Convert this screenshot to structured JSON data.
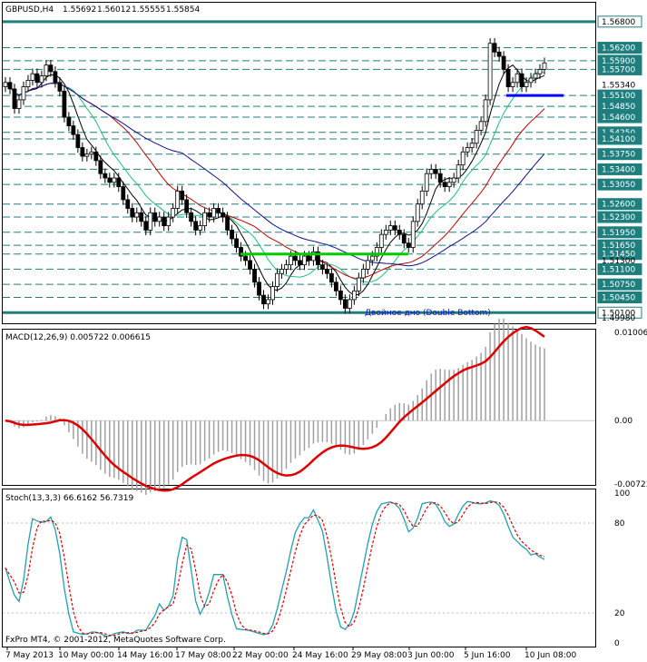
{
  "chart_data": [
    {
      "type": "candlestick",
      "panel": "price",
      "title": "GBPUSD,H4",
      "ohlc_header": [
        "1.55692",
        "1.56012",
        "1.55555",
        "1.55854"
      ],
      "ylim": [
        1.4998,
        1.5688
      ],
      "dashed_levels": [
        1.562,
        1.559,
        1.557,
        1.551,
        1.5485,
        1.546,
        1.5425,
        1.541,
        1.5375,
        1.534,
        1.5305,
        1.526,
        1.523,
        1.5195,
        1.5165,
        1.5145,
        1.511,
        1.5075,
        1.5045
      ],
      "level_labels": [
        "1.56800",
        "1.56200",
        "1.55900",
        "1.55700",
        "1.55100",
        "1.54850",
        "1.54600",
        "1.54250",
        "1.54100",
        "1.53750",
        "1.53400",
        "1.53050",
        "1.52600",
        "1.52300",
        "1.51950",
        "1.51650",
        "1.51450",
        "1.51100",
        "1.50750",
        "1.50450",
        "1.50100"
      ],
      "axis_labels": [
        "1.55340",
        "1.51300",
        "1.49980"
      ],
      "bold_levels": [
        1.568,
        1.501
      ],
      "double_bottom_neckline": 1.5145,
      "top_box_level": 1.551,
      "annotation": "Двойное дно (Double Bottom)",
      "closes": [
        1.554,
        1.5525,
        1.548,
        1.55,
        1.553,
        1.5545,
        1.556,
        1.554,
        1.5555,
        1.558,
        1.5565,
        1.554,
        1.552,
        1.546,
        1.544,
        1.542,
        1.539,
        1.537,
        1.5375,
        1.538,
        1.536,
        1.533,
        1.532,
        1.531,
        1.532,
        1.53,
        1.527,
        1.525,
        1.523,
        1.524,
        1.522,
        1.52,
        1.524,
        1.522,
        1.523,
        1.521,
        1.523,
        1.525,
        1.529,
        1.527,
        1.524,
        1.522,
        1.52,
        1.521,
        1.524,
        1.523,
        1.525,
        1.524,
        1.523,
        1.52,
        1.518,
        1.516,
        1.514,
        1.513,
        1.511,
        1.508,
        1.505,
        1.503,
        1.504,
        1.507,
        1.51,
        1.511,
        1.512,
        1.514,
        1.513,
        1.512,
        1.514,
        1.513,
        1.515,
        1.512,
        1.511,
        1.51,
        1.508,
        1.506,
        1.504,
        1.502,
        1.504,
        1.506,
        1.509,
        1.511,
        1.513,
        1.514,
        1.516,
        1.519,
        1.52,
        1.521,
        1.52,
        1.519,
        1.517,
        1.516,
        1.522,
        1.526,
        1.529,
        1.533,
        1.534,
        1.533,
        1.531,
        1.53,
        1.531,
        1.532,
        1.535,
        1.538,
        1.539,
        1.54,
        1.543,
        1.545,
        1.55,
        1.563,
        1.561,
        1.56,
        1.557,
        1.553,
        1.554,
        1.556,
        1.553,
        1.554,
        1.555,
        1.556,
        1.557,
        1.5585
      ],
      "series": [
        {
          "name": "MA-fast",
          "color": "#000000"
        },
        {
          "name": "MA-mid",
          "color": "#20c080"
        },
        {
          "name": "MA-slow",
          "color": "#c00000"
        },
        {
          "name": "MA-long",
          "color": "#10108a"
        }
      ],
      "colors": {
        "double_bottom": "#00cc00",
        "top_box": "#0000ff",
        "bold_level": "#1f7f7f",
        "dashed": "#1f7f7f"
      }
    },
    {
      "type": "bar+line",
      "panel": "macd",
      "title": "MACD(12,26,9) 0.005722 0.006615",
      "ylim": [
        -0.00723,
        0.010066
      ],
      "tick_labels": [
        "0.010066",
        "0.00",
        "-0.00723"
      ],
      "histogram_color": "#a0a0a0",
      "signal_color": "#dd0000"
    },
    {
      "type": "line",
      "panel": "stochastic",
      "title": "Stoch(13,3,3) 66.6162 56.7319",
      "ylim": [
        0,
        100
      ],
      "tick_labels": [
        "100",
        "80",
        "20",
        "0"
      ],
      "main_color": "#20a0b0",
      "signal_color": "#dd0000"
    }
  ],
  "x_axis_labels": [
    "7 May 2013",
    "10 May 00:00",
    "14 May 16:00",
    "17 May 08:00",
    "22 May 00:00",
    "24 May 16:00",
    "29 May 08:00",
    "3 Jun 00:00",
    "5 Jun 16:00",
    "10 Jun 08:00"
  ],
  "copyright": "FxPro MT4, © 2001-2012, MetaQuotes Software Corp."
}
